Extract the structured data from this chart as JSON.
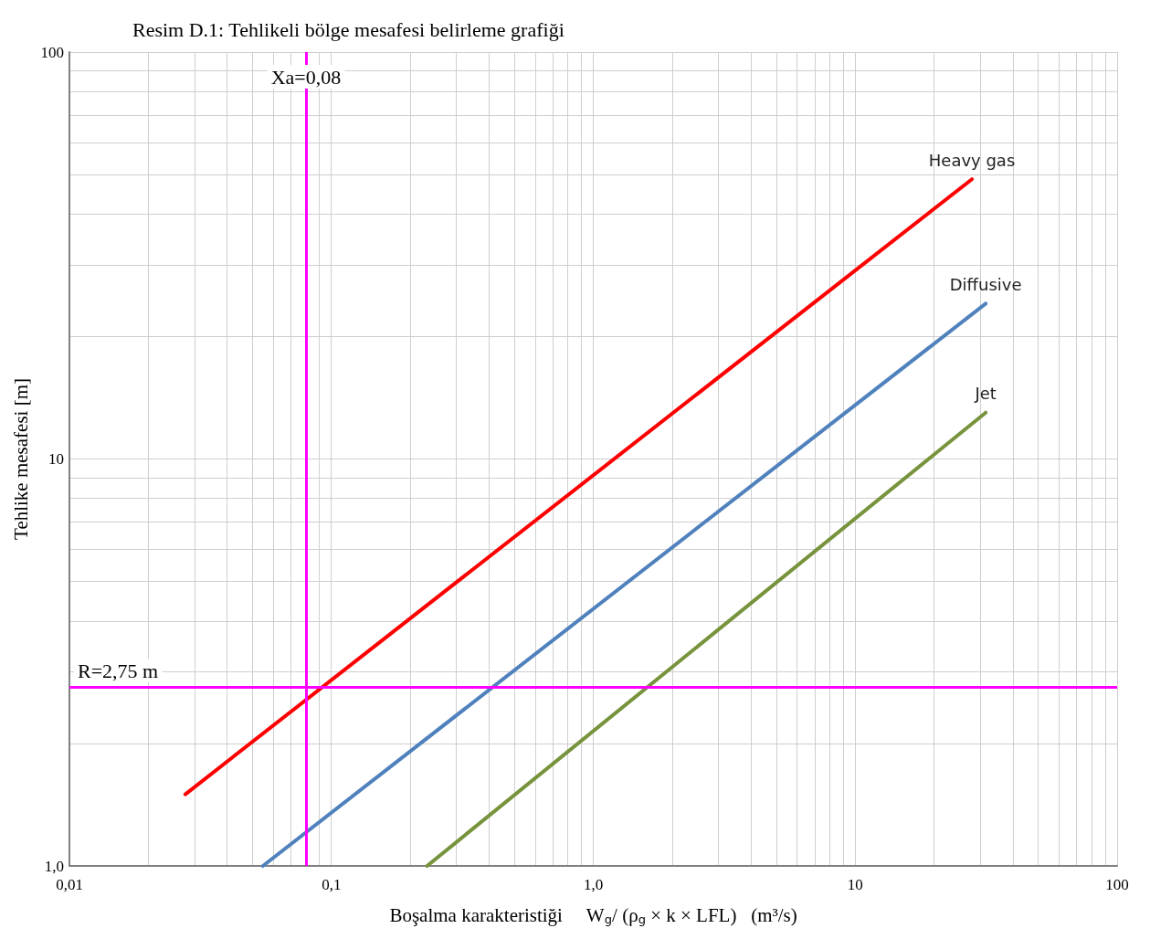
{
  "chart_data": {
    "type": "line",
    "title": "Resim D.1: Tehlikeli bölge mesafesi belirleme grafiği",
    "xlabel": "Boşalma karakteristiği     W$_{g}$/ (ρ$_{g}$ × k × LFL)   (m³/s)",
    "ylabel": "Tehlike mesafesi [m]",
    "log": "xy",
    "grid": true,
    "legend": false,
    "marker": "none",
    "line_style": "solid",
    "xlim": [
      0.01,
      100
    ],
    "ylim": [
      1,
      100
    ],
    "xticks": [
      {
        "value": 0.01,
        "label": "0,01"
      },
      {
        "value": 0.1,
        "label": "0,1"
      },
      {
        "value": 1,
        "label": "1,0"
      },
      10,
      100
    ],
    "yticks": [
      {
        "value": 1,
        "label": "1,0"
      },
      10,
      100
    ],
    "series": [
      {
        "name": "Heavy gas",
        "color": "#ff0000",
        "x": [
          0.0277,
          27.9
        ],
        "values": [
          1.5,
          48.7
        ]
      },
      {
        "name": "Diffusive",
        "color": "#4f81bd",
        "x": [
          0.0548,
          31.5
        ],
        "values": [
          1.0,
          24.1
        ]
      },
      {
        "name": "Jet",
        "color": "#77933c",
        "x": [
          0.232,
          31.5
        ],
        "values": [
          1.0,
          13.0
        ]
      }
    ],
    "ref_lines": [
      {
        "axis": "x",
        "value": 0.08,
        "label": "Xa=0,08",
        "color": "#ff00ff"
      },
      {
        "axis": "y",
        "value": 2.75,
        "label": "R=2,75 m",
        "color": "#ff00ff"
      }
    ]
  }
}
